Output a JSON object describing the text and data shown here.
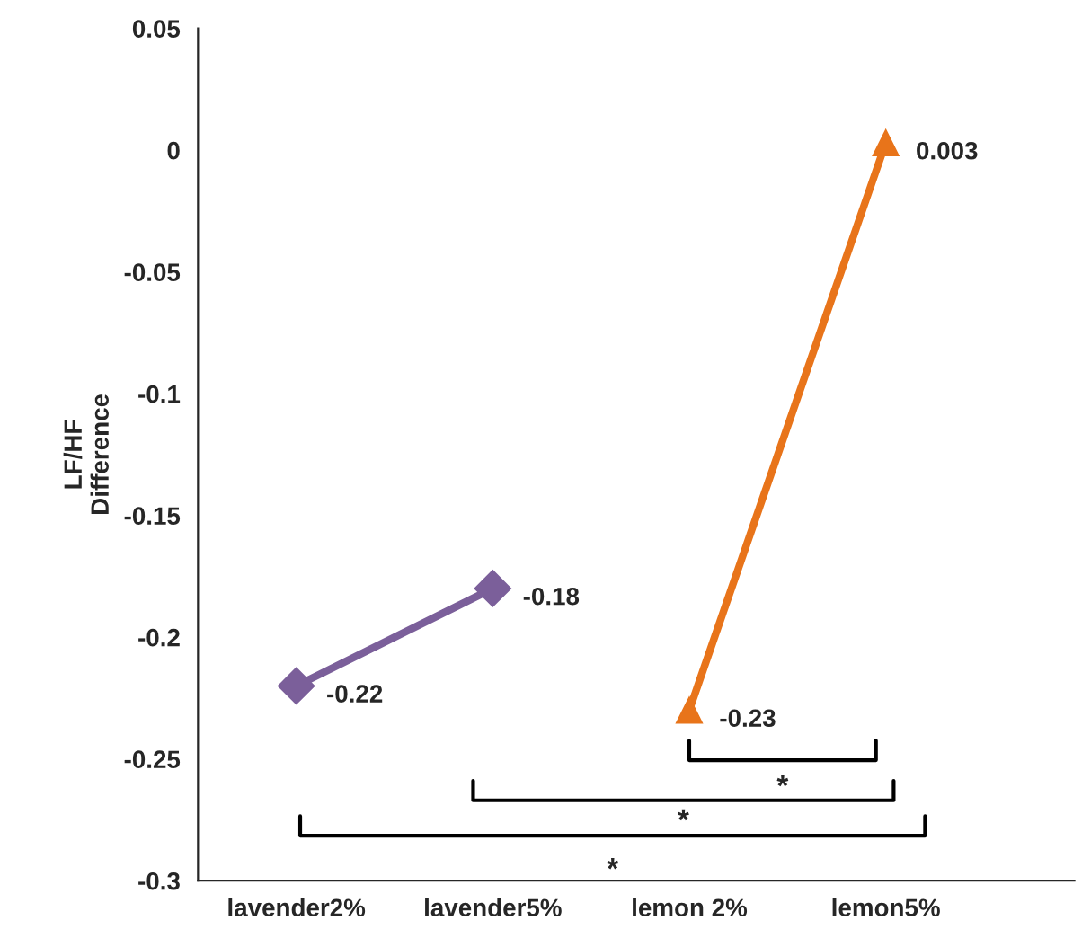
{
  "chart_data": {
    "type": "line",
    "ylabel": "LF/HF\nDifference",
    "categories": [
      "lavender2%",
      "lavender5%",
      "lemon 2%",
      "lemon5%"
    ],
    "series": [
      {
        "color": "#7b5f9a",
        "marker": "diamond",
        "values": [
          -0.22,
          -0.18,
          null,
          null
        ],
        "value_labels": [
          "-0.22",
          "-0.18",
          null,
          null
        ]
      },
      {
        "color": "#e8741a",
        "marker": "triangle",
        "values": [
          null,
          null,
          -0.23,
          0.003
        ],
        "value_labels": [
          null,
          null,
          "-0.23",
          "0.003"
        ]
      }
    ],
    "ylim": [
      -0.3,
      0.05
    ],
    "yticks": [
      -0.3,
      -0.25,
      -0.2,
      -0.15,
      -0.1,
      -0.05,
      0,
      0.05
    ],
    "grid": false,
    "legend": false,
    "annotations": [
      "*",
      "*",
      "*"
    ]
  }
}
